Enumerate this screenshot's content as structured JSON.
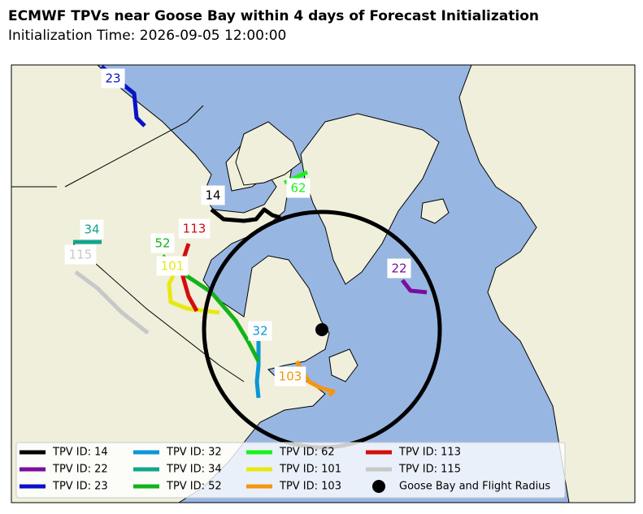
{
  "header": {
    "title": "ECMWF TPVs near Goose Bay within 4 days of Forecast Initialization",
    "subtitle": "Initialization Time: 2026-09-05 12:00:00"
  },
  "tracks": [
    {
      "label": "14",
      "legend": "TPV ID: 14",
      "color": "#000000"
    },
    {
      "label": "22",
      "legend": "TPV ID: 22",
      "color": "#7b0c9c"
    },
    {
      "label": "23",
      "legend": "TPV ID: 23",
      "color": "#0a12c8"
    },
    {
      "label": "32",
      "legend": "TPV ID: 32",
      "color": "#0a97d6"
    },
    {
      "label": "34",
      "legend": "TPV ID: 34",
      "color": "#12a58c"
    },
    {
      "label": "52",
      "legend": "TPV ID: 52",
      "color": "#12b418"
    },
    {
      "label": "62",
      "legend": "TPV ID: 62",
      "color": "#1af21a"
    },
    {
      "label": "101",
      "legend": "TPV ID: 101",
      "color": "#e8e812"
    },
    {
      "label": "103",
      "legend": "TPV ID: 103",
      "color": "#f59510"
    },
    {
      "label": "113",
      "legend": "TPV ID: 113",
      "color": "#d40d0d"
    },
    {
      "label": "115",
      "legend": "TPV ID: 115",
      "color": "#c8c8c8"
    }
  ],
  "station": {
    "legend": "Goose Bay and Flight Radius",
    "color": "#000000"
  }
}
